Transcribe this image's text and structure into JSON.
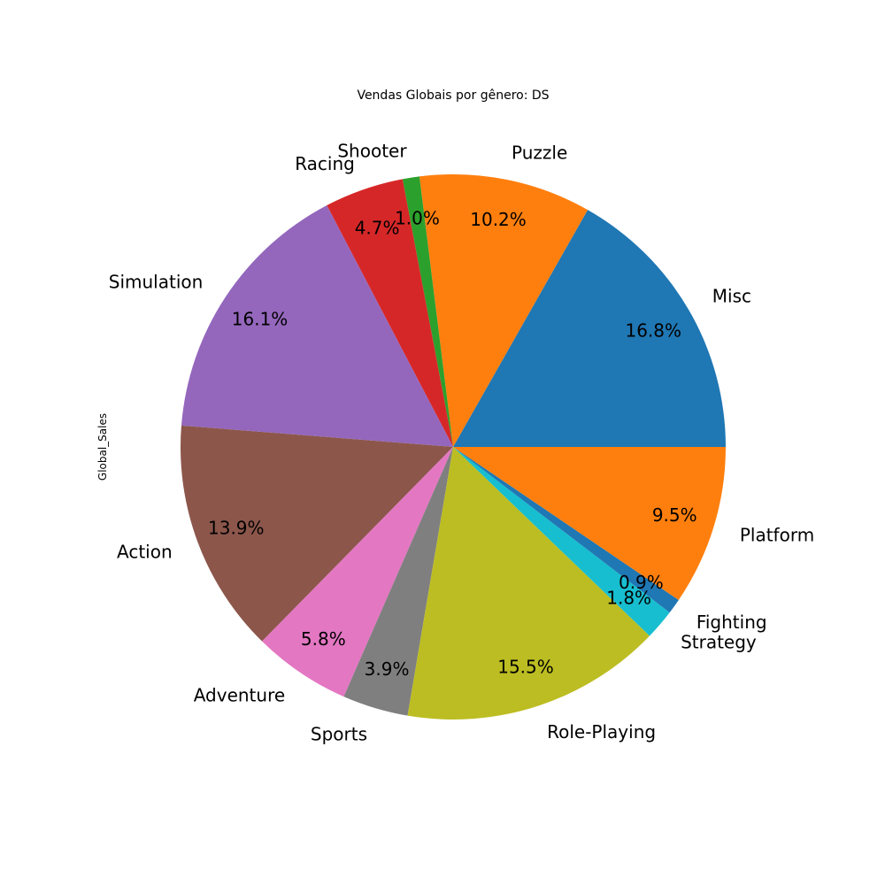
{
  "chart_data": {
    "type": "pie",
    "title": "Vendas Globais por gênero: DS",
    "ylabel": "Global_Sales",
    "start_angle_deg": 0,
    "direction": "counterclockwise",
    "slices": [
      {
        "label": "Misc",
        "percent": 16.8,
        "percent_label": "16.8%",
        "color": "#1f77b4"
      },
      {
        "label": "Puzzle",
        "percent": 10.2,
        "percent_label": "10.2%",
        "color": "#ff7f0e"
      },
      {
        "label": "Shooter",
        "percent": 1.0,
        "percent_label": "1.0%",
        "color": "#2ca02c"
      },
      {
        "label": "Racing",
        "percent": 4.7,
        "percent_label": "4.7%",
        "color": "#d62728"
      },
      {
        "label": "Simulation",
        "percent": 16.1,
        "percent_label": "16.1%",
        "color": "#9467bd"
      },
      {
        "label": "Action",
        "percent": 13.9,
        "percent_label": "13.9%",
        "color": "#8c564b"
      },
      {
        "label": "Adventure",
        "percent": 5.8,
        "percent_label": "5.8%",
        "color": "#e377c2"
      },
      {
        "label": "Sports",
        "percent": 3.9,
        "percent_label": "3.9%",
        "color": "#7f7f7f"
      },
      {
        "label": "Role-Playing",
        "percent": 15.5,
        "percent_label": "15.5%",
        "color": "#bcbd22"
      },
      {
        "label": "Strategy",
        "percent": 1.8,
        "percent_label": "1.8%",
        "color": "#17becf"
      },
      {
        "label": "Fighting",
        "percent": 0.9,
        "percent_label": "0.9%",
        "color": "#1f77b4"
      },
      {
        "label": "Platform",
        "percent": 9.5,
        "percent_label": "9.5%",
        "color": "#ff7f0e"
      }
    ]
  }
}
